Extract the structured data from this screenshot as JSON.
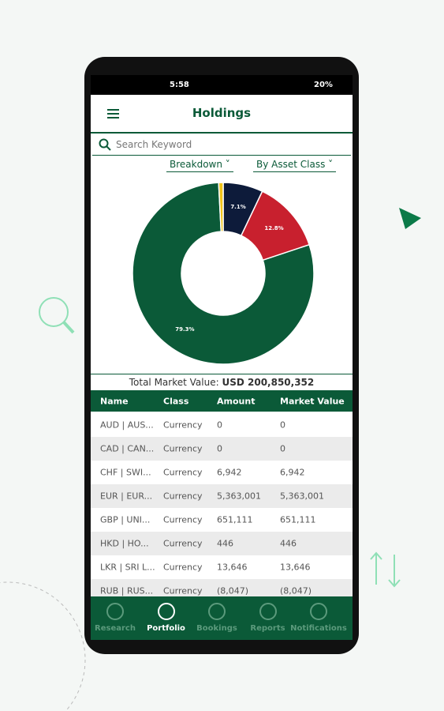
{
  "status_bar": {
    "time": "5:58",
    "battery": "20%"
  },
  "header": {
    "title": "Holdings"
  },
  "search": {
    "placeholder": "Search Keyword"
  },
  "filters": [
    "Breakdown",
    "By Asset Class"
  ],
  "chart": {
    "type": "donut",
    "values": [
      7.1,
      12.8,
      79.3,
      0.8
    ],
    "value_labels": [
      "7.1%",
      "12.8%",
      "79.3%",
      null
    ],
    "colors": [
      "#0d1b3a",
      "#c8202e",
      "#0b5a38",
      "#f0c419"
    ]
  },
  "total": {
    "label": "Total Market Value:",
    "value": "USD 200,850,352"
  },
  "table": {
    "columns": [
      "Name",
      "Class",
      "Amount",
      "Market Value"
    ],
    "rows": [
      [
        "AUD | AUS...",
        "Currency",
        "0",
        "0"
      ],
      [
        "CAD | CAN...",
        "Currency",
        "0",
        "0"
      ],
      [
        "CHF | SWI...",
        "Currency",
        "6,942",
        "6,942"
      ],
      [
        "EUR | EUR...",
        "Currency",
        "5,363,001",
        "5,363,001"
      ],
      [
        "GBP | UNI...",
        "Currency",
        "651,111",
        "651,111"
      ],
      [
        "HKD | HO...",
        "Currency",
        "446",
        "446"
      ],
      [
        "LKR | SRI L...",
        "Currency",
        "13,646",
        "13,646"
      ],
      [
        "RUB | RUS...",
        "Currency",
        "(8,047)",
        "(8,047)"
      ]
    ]
  },
  "nav": [
    "Research",
    "Portfolio",
    "Bookings",
    "Reports",
    "Notifications"
  ]
}
